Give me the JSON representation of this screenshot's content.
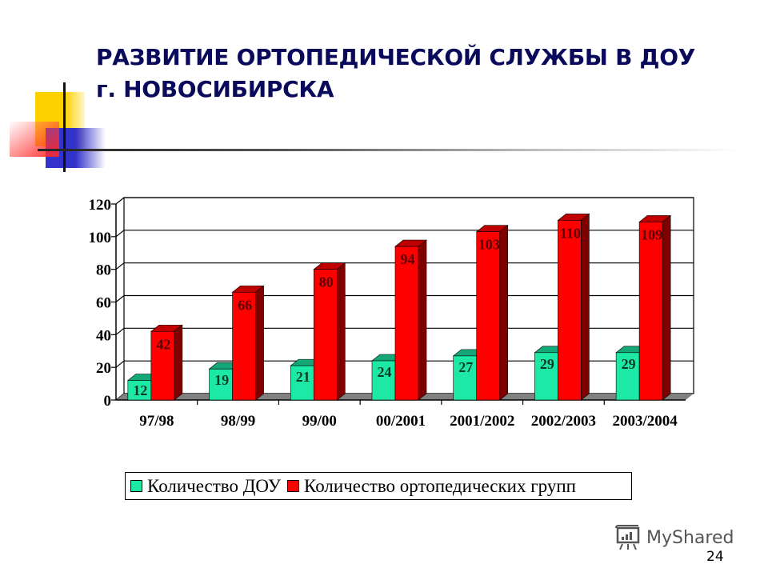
{
  "slide": {
    "title_line1": "РАЗВИТИЕ ОРТОПЕДИЧЕСКОЙ СЛУЖБЫ В ДОУ",
    "title_line2": "г. НОВОСИБИРСКА",
    "page_number": "24",
    "watermark": "MyShared"
  },
  "legend": {
    "items": [
      {
        "label": "Количество ДОУ",
        "color": "#1de9a6"
      },
      {
        "label": "Количество ортопедических групп",
        "color": "#ff0000"
      }
    ]
  },
  "colors": {
    "title": "#0a0a5c",
    "series1_front": "#1de9a6",
    "series1_top": "#14a878",
    "series1_side": "#0e7a57",
    "series2_front": "#ff0000",
    "series2_top": "#c00000",
    "series2_side": "#800000",
    "floor": "#808080"
  },
  "chart_data": {
    "type": "bar",
    "title": "РАЗВИТИЕ ОРТОПЕДИЧЕСКОЙ СЛУЖБЫ В ДОУ г. НОВОСИБИРСКА",
    "xlabel": "",
    "ylabel": "",
    "ylim": [
      0,
      120
    ],
    "yticks": [
      0,
      20,
      40,
      60,
      80,
      100,
      120
    ],
    "grid": true,
    "legend_position": "bottom",
    "categories": [
      "97/98",
      "98/99",
      "99/00",
      "00/2001",
      "2001/2002",
      "2002/2003",
      "2003/2004"
    ],
    "series": [
      {
        "name": "Количество ДОУ",
        "values": [
          12,
          19,
          21,
          24,
          27,
          29,
          29
        ]
      },
      {
        "name": "Количество ортопедических групп",
        "values": [
          42,
          66,
          80,
          94,
          103,
          110,
          109
        ]
      }
    ]
  }
}
